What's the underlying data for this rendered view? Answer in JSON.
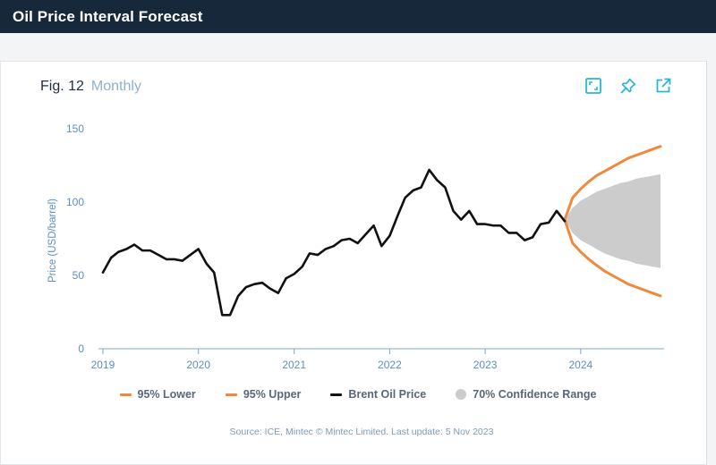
{
  "header": {
    "title": "Oil Price Interval Forecast"
  },
  "figure": {
    "number": "Fig. 12",
    "frequency": "Monthly"
  },
  "toolbar": [
    {
      "name": "expand-icon",
      "label": "expand"
    },
    {
      "name": "pin-icon",
      "label": "pin"
    },
    {
      "name": "external-link-icon",
      "label": "open"
    }
  ],
  "colors": {
    "header_bg": "#17283a",
    "accent": "#29b6d8",
    "brent": "#111111",
    "bounds": "#f0883e",
    "confidence": "#cccccc",
    "axis_text": "#5a8fc4"
  },
  "chart_data": {
    "type": "line",
    "ylabel": "Price (USD/barrel)",
    "xlabel": "",
    "ylim": [
      0,
      150
    ],
    "yticks": [
      0,
      50,
      100,
      150
    ],
    "xlim": [
      "2018-12-15",
      "2024-11-01"
    ],
    "xticks": [
      "2019",
      "2020",
      "2021",
      "2022",
      "2023",
      "2024"
    ],
    "grid": false,
    "legend_position": "bottom",
    "series": [
      {
        "name": "Brent Oil Price",
        "x": [
          "2019-01",
          "2019-02",
          "2019-03",
          "2019-04",
          "2019-05",
          "2019-06",
          "2019-07",
          "2019-08",
          "2019-09",
          "2019-10",
          "2019-11",
          "2019-12",
          "2020-01",
          "2020-02",
          "2020-03",
          "2020-04",
          "2020-05",
          "2020-06",
          "2020-07",
          "2020-08",
          "2020-09",
          "2020-10",
          "2020-11",
          "2020-12",
          "2021-01",
          "2021-02",
          "2021-03",
          "2021-04",
          "2021-05",
          "2021-06",
          "2021-07",
          "2021-08",
          "2021-09",
          "2021-10",
          "2021-11",
          "2021-12",
          "2022-01",
          "2022-02",
          "2022-03",
          "2022-04",
          "2022-05",
          "2022-06",
          "2022-07",
          "2022-08",
          "2022-09",
          "2022-10",
          "2022-11",
          "2022-12",
          "2023-01",
          "2023-02",
          "2023-03",
          "2023-04",
          "2023-05",
          "2023-06",
          "2023-07",
          "2023-08",
          "2023-09",
          "2023-10",
          "2023-11"
        ],
        "values": [
          52,
          62,
          66,
          68,
          71,
          67,
          67,
          64,
          61,
          61,
          60,
          64,
          68,
          58,
          52,
          23,
          23,
          36,
          42,
          44,
          45,
          41,
          38,
          48,
          51,
          56,
          65,
          64,
          68,
          70,
          74,
          75,
          72,
          78,
          84,
          70,
          77,
          91,
          103,
          108,
          110,
          122,
          115,
          110,
          94,
          88,
          94,
          85,
          85,
          84,
          84,
          79,
          79,
          74,
          76,
          85,
          86,
          94,
          87
        ]
      },
      {
        "name": "95% Upper",
        "x": [
          "2023-11",
          "2023-12",
          "2024-01",
          "2024-02",
          "2024-03",
          "2024-04",
          "2024-05",
          "2024-06",
          "2024-07",
          "2024-08",
          "2024-09",
          "2024-10",
          "2024-11"
        ],
        "values": [
          88,
          103,
          109,
          114,
          118,
          121,
          124,
          127,
          130,
          132,
          134,
          136,
          138
        ]
      },
      {
        "name": "95% Lower",
        "x": [
          "2023-11",
          "2023-12",
          "2024-01",
          "2024-02",
          "2024-03",
          "2024-04",
          "2024-05",
          "2024-06",
          "2024-07",
          "2024-08",
          "2024-09",
          "2024-10",
          "2024-11"
        ],
        "values": [
          88,
          72,
          66,
          61,
          57,
          53,
          50,
          47,
          44,
          42,
          40,
          38,
          36
        ]
      },
      {
        "name": "70% Confidence Range",
        "x": [
          "2023-11",
          "2023-12",
          "2024-01",
          "2024-02",
          "2024-03",
          "2024-04",
          "2024-05",
          "2024-06",
          "2024-07",
          "2024-08",
          "2024-09",
          "2024-10",
          "2024-11"
        ],
        "upper": [
          88,
          96,
          101,
          104,
          107,
          109,
          111,
          113,
          114,
          116,
          117,
          118,
          119
        ],
        "lower": [
          88,
          79,
          74,
          71,
          68,
          65,
          63,
          61,
          60,
          58,
          57,
          56,
          55
        ]
      }
    ]
  },
  "legend": [
    {
      "label": "95% Lower",
      "kind": "line",
      "color": "#f0883e"
    },
    {
      "label": "95% Upper",
      "kind": "line",
      "color": "#f0883e"
    },
    {
      "label": "Brent Oil Price",
      "kind": "line",
      "color": "#111111"
    },
    {
      "label": "70% Confidence Range",
      "kind": "dot",
      "color": "#cccccc"
    }
  ],
  "source": "Source: ICE, Mintec © Mintec Limited. Last update: 5 Nov 2023"
}
